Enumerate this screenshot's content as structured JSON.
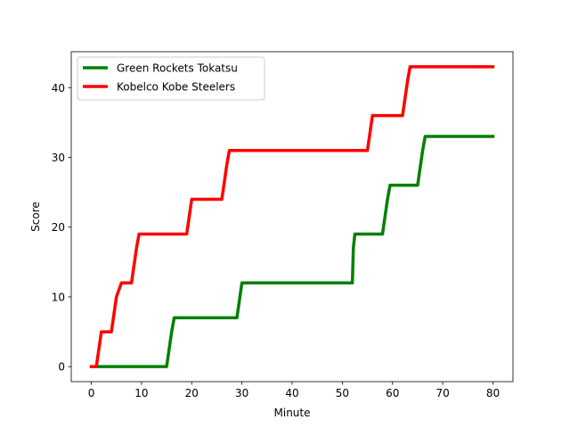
{
  "chart_data": {
    "type": "line",
    "title": "",
    "xlabel": "Minute",
    "ylabel": "Score",
    "xlim": [
      -4,
      84
    ],
    "ylim": [
      -2.15,
      45.15
    ],
    "xticks": [
      0,
      10,
      20,
      30,
      40,
      50,
      60,
      70,
      80
    ],
    "yticks": [
      0,
      10,
      20,
      30,
      40
    ],
    "grid": false,
    "legend_position": "top-left",
    "series": [
      {
        "name": "Green Rockets Tokatsu",
        "color": "#008000",
        "x": [
          1.5,
          15,
          16,
          16.5,
          29,
          30,
          52,
          52.2,
          52.5,
          58,
          59,
          59.5,
          65,
          66,
          66.5,
          80
        ],
        "y": [
          0,
          0,
          5,
          7,
          7,
          12,
          12,
          17,
          19,
          19,
          24,
          26,
          26,
          31,
          33,
          33
        ]
      },
      {
        "name": "Kobelco Kobe Steelers",
        "color": "#ff0000",
        "x": [
          0,
          1,
          2,
          4,
          5,
          6,
          8,
          9,
          9.5,
          19,
          20,
          26,
          27,
          27.5,
          55,
          56,
          62,
          63,
          63.5,
          80
        ],
        "y": [
          0,
          0,
          5,
          5,
          10,
          12,
          12,
          17,
          19,
          19,
          24,
          24,
          29,
          31,
          31,
          36,
          36,
          41,
          43,
          43
        ]
      }
    ]
  }
}
